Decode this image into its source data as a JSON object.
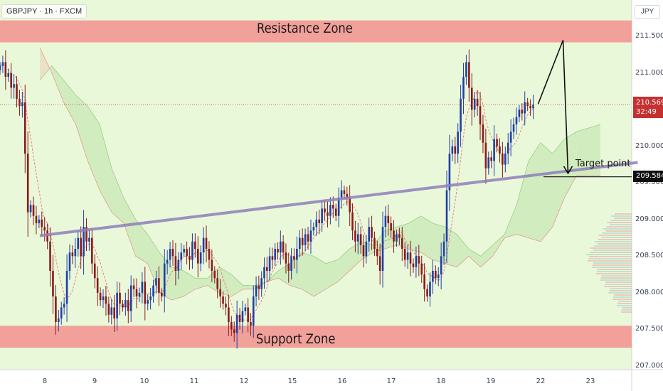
{
  "header": {
    "symbol_label": "GBPJPY · 1h · FXCM"
  },
  "price_axis": {
    "currency": "JPY",
    "ticks": [
      {
        "value": 211.5,
        "label": "211.500"
      },
      {
        "value": 211.0,
        "label": "211.000"
      },
      {
        "value": 210.0,
        "label": "210.000"
      },
      {
        "value": 209.5,
        "label": "209.500"
      },
      {
        "value": 209.0,
        "label": "209.000"
      },
      {
        "value": 208.5,
        "label": "208.500"
      },
      {
        "value": 208.0,
        "label": "208.000"
      },
      {
        "value": 207.5,
        "label": "207.500"
      },
      {
        "value": 207.0,
        "label": "207.000"
      }
    ],
    "last_price": "210.569",
    "countdown": "32:49",
    "target_price": "209.584"
  },
  "time_axis": {
    "ticks": [
      {
        "label": "8",
        "day": 0
      },
      {
        "label": "9",
        "day": 1
      },
      {
        "label": "10",
        "day": 2
      },
      {
        "label": "11",
        "day": 3
      },
      {
        "label": "12",
        "day": 4
      },
      {
        "label": "15",
        "day": 5
      },
      {
        "label": "16",
        "day": 6
      },
      {
        "label": "17",
        "day": 7
      },
      {
        "label": "18",
        "day": 8
      },
      {
        "label": "19",
        "day": 9
      },
      {
        "label": "22",
        "day": 10
      },
      {
        "label": "23",
        "day": 11
      }
    ]
  },
  "annotations": {
    "resistance_label": "Resistance Zone",
    "support_label": "Support Zone",
    "target_label": "Target point"
  },
  "colors": {
    "background": "#eaf8da",
    "zone_fill": "#f2a09a",
    "bull_candle": "#1f3fa8",
    "bear_candle": "#8b1a1a",
    "trendline": "#8e7fb8",
    "last_price_bg": "#c53030"
  },
  "chart_data": {
    "type": "candlestick",
    "ylim": [
      206.95,
      211.82
    ],
    "resistance_zone": [
      211.42,
      211.72
    ],
    "support_zone": [
      207.25,
      207.55
    ],
    "trendline": {
      "from": {
        "day": -0.1,
        "price": 208.78
      },
      "to": {
        "day": 11.95,
        "price": 209.78
      }
    },
    "target_level": 209.584,
    "projection_path": [
      {
        "day": 9.95,
        "price": 210.58
      },
      {
        "day": 10.45,
        "price": 211.45
      },
      {
        "day": 10.55,
        "price": 209.63
      }
    ],
    "closes": [
      211.1,
      211.15,
      210.95,
      211.0,
      210.8,
      210.85,
      210.65,
      210.55,
      210.6,
      209.9,
      209.1,
      209.2,
      209.05,
      208.95,
      209.0,
      208.9,
      208.85,
      208.7,
      208.3,
      207.95,
      207.6,
      207.65,
      207.8,
      207.85,
      208.3,
      208.55,
      208.5,
      208.6,
      208.75,
      208.5,
      208.9,
      208.7,
      208.75,
      208.4,
      208.2,
      208.0,
      207.9,
      207.95,
      207.85,
      207.7,
      207.8,
      207.65,
      208.0,
      207.85,
      207.8,
      207.9,
      207.75,
      208.1,
      208.05,
      207.95,
      208.0,
      208.15,
      207.85,
      207.9,
      207.95,
      208.1,
      208.2,
      208.0,
      207.95,
      208.4,
      208.45,
      208.6,
      208.5,
      208.3,
      208.45,
      208.55,
      208.6,
      208.5,
      208.45,
      208.7,
      208.6,
      208.4,
      208.55,
      208.75,
      208.6,
      208.45,
      208.3,
      208.2,
      208.05,
      207.95,
      207.85,
      207.8,
      207.6,
      207.5,
      207.45,
      207.7,
      207.6,
      207.75,
      207.8,
      207.6,
      207.55,
      207.95,
      208.1,
      208.05,
      208.2,
      208.35,
      208.3,
      208.5,
      208.45,
      208.6,
      208.55,
      208.7,
      208.55,
      208.4,
      208.3,
      208.5,
      208.45,
      208.6,
      208.75,
      208.65,
      208.8,
      208.7,
      208.85,
      208.9,
      209.0,
      208.95,
      209.15,
      209.1,
      209.05,
      209.2,
      209.15,
      209.05,
      209.3,
      209.4,
      209.35,
      209.3,
      209.1,
      208.85,
      208.7,
      208.8,
      208.65,
      208.5,
      208.7,
      208.9,
      208.75,
      208.6,
      208.5,
      208.3,
      208.9,
      209.05,
      208.95,
      208.85,
      208.7,
      208.8,
      208.75,
      208.6,
      208.45,
      208.55,
      208.4,
      208.35,
      208.5,
      208.4,
      208.25,
      208.05,
      207.95,
      208.15,
      208.3,
      208.2,
      208.25,
      208.5,
      208.7,
      209.4,
      209.9,
      210.0,
      209.9,
      210.2,
      210.65,
      210.95,
      211.15,
      210.8,
      210.5,
      210.65,
      210.55,
      210.3,
      210.05,
      209.7,
      209.85,
      209.8,
      210.1,
      210.0,
      209.9,
      209.75,
      209.9,
      210.05,
      210.2,
      210.3,
      210.4,
      210.5,
      210.45,
      210.6,
      210.55,
      210.52,
      210.569
    ],
    "ichimoku_cloud": {
      "day_range": [
        -0.1,
        11.2
      ],
      "span_a": [
        210.9,
        211.1,
        210.9,
        210.7,
        210.55,
        210.3,
        209.7,
        209.3,
        209.0,
        208.8,
        208.55,
        208.35,
        208.3,
        208.2,
        208.2,
        208.35,
        208.25,
        208.1,
        208.1,
        208.15,
        208.3,
        208.4,
        208.55,
        208.5,
        208.4,
        208.45,
        208.6,
        208.7,
        208.65,
        208.85,
        208.9,
        208.95,
        209.05,
        208.95,
        208.9,
        208.8,
        208.6,
        208.5,
        208.65,
        208.8,
        209.2,
        209.8,
        210.05,
        209.9,
        210.1,
        210.2,
        210.25,
        210.3
      ],
      "span_b": [
        211.35,
        211.0,
        210.6,
        210.3,
        209.8,
        209.4,
        209.1,
        208.95,
        208.5,
        208.4,
        208.0,
        207.9,
        207.95,
        208.05,
        208.1,
        208.0,
        207.95,
        208.05,
        208.05,
        208.15,
        208.2,
        208.1,
        208.05,
        207.95,
        208.05,
        208.15,
        208.3,
        208.45,
        208.55,
        208.6,
        208.65,
        208.6,
        208.55,
        208.45,
        208.4,
        208.35,
        208.5,
        208.35,
        208.5,
        208.75,
        208.8,
        208.75,
        208.7,
        208.9,
        209.3,
        209.6,
        209.6,
        209.6
      ]
    }
  }
}
